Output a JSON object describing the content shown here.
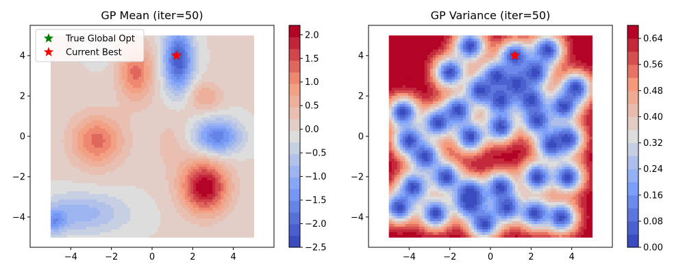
{
  "chart_data": [
    {
      "type": "contour",
      "title": "GP Mean (iter=50)",
      "xlim": [
        -6.0,
        6.0
      ],
      "ylim": [
        -5.5,
        5.5
      ],
      "x_ticks": [
        -4,
        -2,
        0,
        2,
        4
      ],
      "y_ticks": [
        -4,
        -2,
        0,
        2,
        4
      ],
      "x_tick_labels": [
        "−4",
        "−2",
        "0",
        "2",
        "4"
      ],
      "y_tick_labels": [
        "−4",
        "−2",
        "0",
        "2",
        "4"
      ],
      "domain": {
        "x": [
          -5,
          5
        ],
        "y": [
          -5,
          5
        ]
      },
      "colorbar": {
        "range": [
          -2.5,
          2.2
        ],
        "ticks": [
          -2.5,
          -2.0,
          -1.5,
          -1.0,
          -0.5,
          0.0,
          0.5,
          1.0,
          1.5,
          2.0
        ],
        "tick_labels": [
          "−2.5",
          "−2.0",
          "−1.5",
          "−1.0",
          "−0.5",
          "0.0",
          "0.5",
          "1.0",
          "1.5",
          "2.0"
        ],
        "colormap": "coolwarm"
      },
      "blobs": [
        {
          "x": 2.6,
          "y": -2.5,
          "amp": 2.2,
          "sx": 0.8,
          "sy": 0.9
        },
        {
          "x": -2.7,
          "y": -0.2,
          "amp": 1.3,
          "sx": 0.9,
          "sy": 0.9
        },
        {
          "x": -0.8,
          "y": 3.2,
          "amp": 1.3,
          "sx": 0.6,
          "sy": 1.0
        },
        {
          "x": 2.6,
          "y": 2.0,
          "amp": 0.7,
          "sx": 0.6,
          "sy": 0.5
        },
        {
          "x": 3.2,
          "y": 0.0,
          "amp": -1.7,
          "sx": 0.8,
          "sy": 0.6
        },
        {
          "x": 1.3,
          "y": 3.8,
          "amp": -2.2,
          "sx": 0.5,
          "sy": 1.1
        },
        {
          "x": -3.5,
          "y": -3.8,
          "amp": -0.9,
          "sx": 1.6,
          "sy": 0.7
        },
        {
          "x": -4.8,
          "y": -4.2,
          "amp": -1.0,
          "sx": 0.4,
          "sy": 0.4
        },
        {
          "x": 1.0,
          "y": -0.3,
          "amp": 0.3,
          "sx": 0.8,
          "sy": 1.2
        },
        {
          "x": -2.5,
          "y": 4.2,
          "amp": -0.3,
          "sx": 0.5,
          "sy": 0.5
        }
      ],
      "markers": [
        {
          "name": "True Global Opt",
          "x": 1.2,
          "y": 4.0,
          "color": "#008000"
        },
        {
          "name": "Current Best",
          "x": 1.2,
          "y": 4.0,
          "color": "#ff0000"
        }
      ],
      "legend": {
        "location": "upper-left",
        "entries": [
          "True Global Opt",
          "Current Best"
        ]
      }
    },
    {
      "type": "contour",
      "title": "GP Variance (iter=50)",
      "xlim": [
        -6.0,
        6.0
      ],
      "ylim": [
        -5.5,
        5.5
      ],
      "x_ticks": [
        -4,
        -2,
        0,
        2,
        4
      ],
      "y_ticks": [
        -4,
        -2,
        0,
        2,
        4
      ],
      "x_tick_labels": [
        "−4",
        "−2",
        "0",
        "2",
        "4"
      ],
      "y_tick_labels": [
        "−4",
        "−2",
        "0",
        "2",
        "4"
      ],
      "domain": {
        "x": [
          -5,
          5
        ],
        "y": [
          -5,
          5
        ]
      },
      "colorbar": {
        "range": [
          0.0,
          0.68
        ],
        "ticks": [
          0.0,
          0.08,
          0.16,
          0.24,
          0.32,
          0.4,
          0.48,
          0.56,
          0.64
        ],
        "tick_labels": [
          "0.00",
          "0.08",
          "0.16",
          "0.24",
          "0.32",
          "0.40",
          "0.48",
          "0.56",
          "0.64"
        ],
        "colormap": "coolwarm"
      },
      "samples": [
        [
          1.2,
          4.0
        ],
        [
          -1.0,
          4.5
        ],
        [
          -2.0,
          3.2
        ],
        [
          0.3,
          3.0
        ],
        [
          2.2,
          3.2
        ],
        [
          -3.2,
          -1.0
        ],
        [
          -1.6,
          1.3
        ],
        [
          0.5,
          1.8
        ],
        [
          2.0,
          1.8
        ],
        [
          3.6,
          1.5
        ],
        [
          -1.0,
          0.0
        ],
        [
          0.5,
          0.5
        ],
        [
          2.3,
          0.8
        ],
        [
          3.8,
          -0.1
        ],
        [
          -2.2,
          -2.0
        ],
        [
          -1.0,
          -2.8
        ],
        [
          0.5,
          -2.5
        ],
        [
          2.3,
          -2.0
        ],
        [
          3.8,
          -2.0
        ],
        [
          -4.5,
          -3.5
        ],
        [
          -2.7,
          -3.8
        ],
        [
          -1.0,
          -3.3
        ],
        [
          0.8,
          -3.5
        ],
        [
          2.2,
          -3.8
        ],
        [
          3.5,
          -4.0
        ],
        [
          -4.0,
          -0.2
        ],
        [
          4.2,
          2.4
        ],
        [
          -4.3,
          1.2
        ],
        [
          -0.3,
          -4.3
        ],
        [
          1.3,
          2.6
        ],
        [
          3.0,
          -0.4
        ],
        [
          -3.8,
          -2.5
        ],
        [
          -0.5,
          2.3
        ],
        [
          2.8,
          4.3
        ],
        [
          -2.6,
          0.7
        ]
      ],
      "markers": [
        {
          "name": "Current Best",
          "x": 1.2,
          "y": 4.0,
          "color": "#ff0000"
        }
      ]
    }
  ]
}
